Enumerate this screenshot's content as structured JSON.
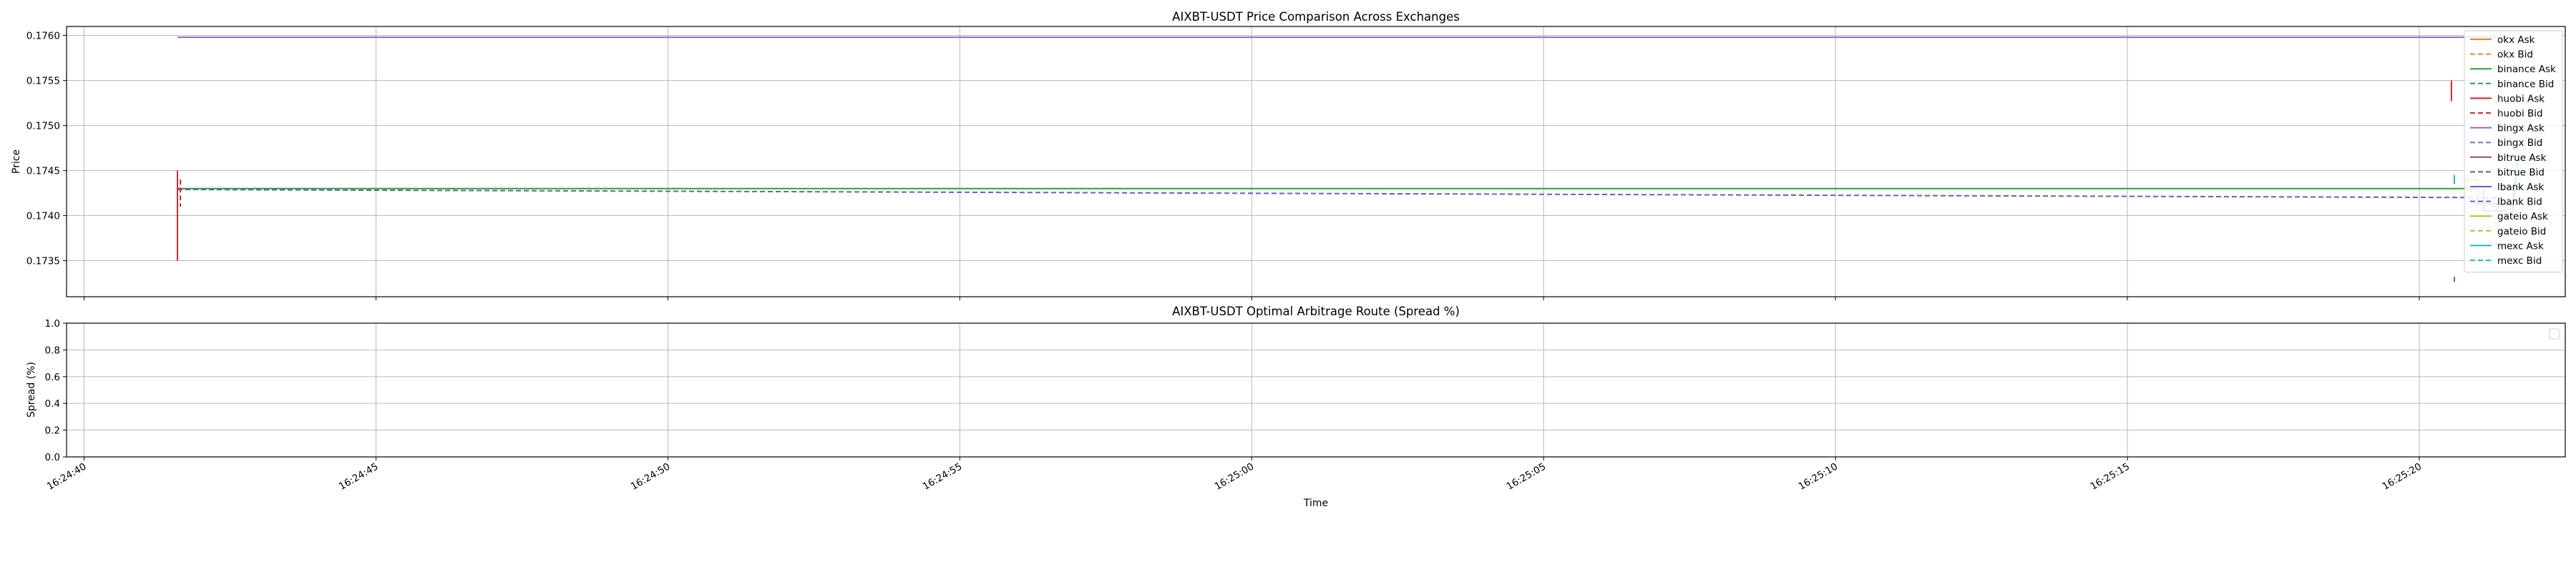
{
  "chart_data": [
    {
      "type": "line",
      "title": "AIXBT-USDT Price Comparison Across Exchanges",
      "xlabel": "",
      "ylabel": "Price",
      "ylim": [
        0.1731,
        0.1761
      ],
      "yticks": [
        "0.1735",
        "0.1740",
        "0.1745",
        "0.1750",
        "0.1755",
        "0.1760"
      ],
      "grid": true,
      "legend_position": "right",
      "series": [
        {
          "name": "okx Ask",
          "color": "#ff7f0e",
          "style": "solid"
        },
        {
          "name": "okx Bid",
          "color": "#ff7f0e",
          "style": "dashed"
        },
        {
          "name": "binance Ask",
          "color": "#2ca02c",
          "style": "solid"
        },
        {
          "name": "binance Bid",
          "color": "#2ca02c",
          "style": "dashed"
        },
        {
          "name": "huobi Ask",
          "color": "#d62728",
          "style": "solid"
        },
        {
          "name": "huobi Bid",
          "color": "#d62728",
          "style": "dashed"
        },
        {
          "name": "bingx Ask",
          "color": "#9467bd",
          "style": "solid"
        },
        {
          "name": "bingx Bid",
          "color": "#9467bd",
          "style": "dashed"
        },
        {
          "name": "bitrue Ask",
          "color": "#8c564b",
          "style": "solid"
        },
        {
          "name": "bitrue Bid",
          "color": "#8c564b",
          "style": "dashed"
        },
        {
          "name": "lbank Ask",
          "color": "#6a5acd",
          "style": "solid"
        },
        {
          "name": "lbank Bid",
          "color": "#6a5acd",
          "style": "dashed"
        },
        {
          "name": "gateio Ask",
          "color": "#bcbd22",
          "style": "solid"
        },
        {
          "name": "gateio Bid",
          "color": "#bcbd22",
          "style": "dashed"
        },
        {
          "name": "mexc Ask",
          "color": "#17becf",
          "style": "solid"
        },
        {
          "name": "mexc Bid",
          "color": "#17becf",
          "style": "dashed"
        }
      ],
      "traces": [
        {
          "series": "bingx Ask",
          "points": [
            [
              "16:24:41.6",
              0.17598
            ],
            [
              "16:25:21.5",
              0.17598
            ]
          ]
        },
        {
          "series": "binance Ask",
          "points": [
            [
              "16:24:41.6",
              0.1743
            ],
            [
              "16:25:21.0",
              0.1743
            ],
            [
              "16:25:21.0",
              0.17413
            ],
            [
              "16:25:21.6",
              0.17413
            ],
            [
              "16:25:21.6",
              0.174
            ],
            [
              "16:25:21.7",
              0.1747
            ]
          ]
        },
        {
          "series": "lbank Bid",
          "points": [
            [
              "16:24:41.6",
              0.17429
            ],
            [
              "16:25:21.4",
              0.1742
            ]
          ]
        },
        {
          "series": "lbank Ask",
          "points": [
            [
              "16:25:21.1",
              0.17429
            ],
            [
              "16:25:21.1",
              0.17405
            ],
            [
              "16:25:21.5",
              0.17405
            ]
          ]
        },
        {
          "series": "gateio Ask",
          "points": [
            [
              "16:25:20.8",
              0.1742
            ],
            [
              "16:25:20.8",
              0.1744
            ],
            [
              "16:25:21.0",
              0.1744
            ],
            [
              "16:25:21.0",
              0.1742
            ],
            [
              "16:25:21.1",
              0.1742
            ]
          ]
        },
        {
          "series": "gateio Bid",
          "points": [
            [
              "16:25:21.1",
              0.1741
            ],
            [
              "16:25:21.5",
              0.1741
            ]
          ]
        },
        {
          "series": "huobi Ask",
          "points": [
            [
              "16:24:41.6",
              0.1745
            ],
            [
              "16:24:41.6",
              0.1735
            ]
          ]
        },
        {
          "series": "huobi Bid",
          "points": [
            [
              "16:24:41.65",
              0.1744
            ],
            [
              "16:24:41.65",
              0.1741
            ]
          ]
        },
        {
          "series": "huobi Ask",
          "points": [
            [
              "16:25:20.55",
              0.1755
            ],
            [
              "16:25:20.55",
              0.17527
            ]
          ]
        },
        {
          "series": "mexc Ask",
          "points": [
            [
              "16:25:20.6",
              0.17445
            ],
            [
              "16:25:20.6",
              0.17435
            ]
          ]
        },
        {
          "series": "lbank Bid",
          "points": [
            [
              "16:25:20.6",
              0.17332
            ],
            [
              "16:25:20.6",
              0.17325
            ]
          ]
        },
        {
          "series": "mexc Ask",
          "points": [
            [
              "16:25:21.6",
              0.1742
            ],
            [
              "16:25:21.7",
              0.17465
            ]
          ]
        }
      ]
    },
    {
      "type": "line",
      "title": "AIXBT-USDT Optimal Arbitrage Route (Spread %)",
      "xlabel": "Time",
      "ylabel": "Spread (%)",
      "ylim": [
        0,
        1
      ],
      "yticks": [
        "0.0",
        "0.2",
        "0.4",
        "0.6",
        "0.8",
        "1.0"
      ],
      "grid": true,
      "legend_position": "top-right",
      "series": []
    }
  ],
  "x_axis": {
    "range": [
      "16:24:39.7",
      "16:25:22.5"
    ],
    "ticks": [
      "16:24:40",
      "16:24:45",
      "16:24:50",
      "16:24:55",
      "16:25:00",
      "16:25:05",
      "16:25:10",
      "16:25:15",
      "16:25:20"
    ]
  }
}
